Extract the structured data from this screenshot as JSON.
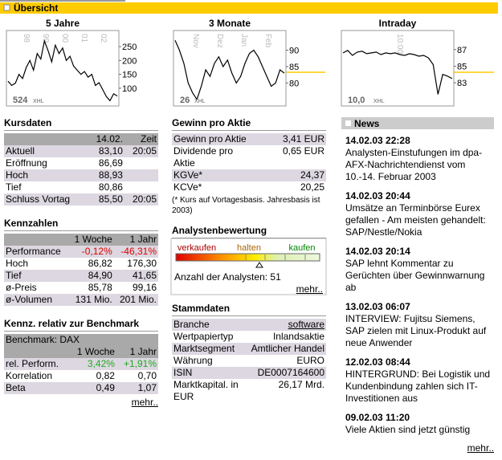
{
  "header": {
    "title": "Übersicht"
  },
  "charts": [
    {
      "type": "line",
      "title": "5 Jahre",
      "ylim": [
        36,
        308
      ],
      "yticks": [
        250,
        200,
        150,
        100
      ],
      "x_labels": [
        "98",
        "99",
        "00",
        "01",
        "02"
      ],
      "watermark": {
        "value": "524",
        "unit": "XHL"
      },
      "values": [
        125,
        110,
        118,
        150,
        135,
        175,
        200,
        165,
        225,
        205,
        270,
        235,
        195,
        255,
        225,
        245,
        200,
        215,
        180,
        165,
        150,
        160,
        140,
        150,
        110,
        120,
        95,
        70,
        55,
        80,
        72
      ]
    },
    {
      "type": "line",
      "title": "3 Monate",
      "ylim": [
        73,
        96
      ],
      "yticks": [
        90,
        85,
        80
      ],
      "x_labels": [
        "Nov",
        "Dez",
        "Jan",
        "Feb"
      ],
      "watermark": {
        "value": "26",
        "unit": "XHL"
      },
      "values": [
        93,
        90,
        86,
        80,
        77,
        75,
        79,
        84,
        82,
        86,
        88,
        85,
        87,
        83,
        80,
        82,
        86,
        89,
        90,
        88,
        85,
        82,
        79,
        80,
        84,
        83
      ]
    },
    {
      "type": "line",
      "title": "Intraday",
      "ylim": [
        80.2,
        89.3
      ],
      "yticks": [
        87,
        85,
        83
      ],
      "x_labels": [
        "10:00"
      ],
      "watermark": {
        "value": "10,0",
        "unit": "XHL"
      },
      "values": [
        86.6,
        86.9,
        86.3,
        86.7,
        86.8,
        86.5,
        86.6,
        86.7,
        86.4,
        86.6,
        86.5,
        86.6,
        86.4,
        86.3,
        86.5,
        86.4,
        86.2,
        86.3,
        86.0,
        85.2,
        81.6,
        84.0,
        83.8,
        83.5
      ]
    }
  ],
  "kursdaten": {
    "title": "Kursdaten",
    "header": [
      "14.02.",
      "Zeit"
    ],
    "rows": [
      [
        "Aktuell",
        "83,10",
        "20:05"
      ],
      [
        "Eröffnung",
        "86,69"
      ],
      [
        "Hoch",
        "88,93"
      ],
      [
        "Tief",
        "80,86"
      ],
      [
        "Schluss Vortag",
        "85,50",
        "20:05"
      ]
    ]
  },
  "kennzahlen": {
    "title": "Kennzahlen",
    "header": [
      "1 Woche",
      "1 Jahr"
    ],
    "highlight_row": 0,
    "highlight_color": "#dd0000",
    "rows": [
      [
        "Performance",
        "-0,12%",
        "-46,31%"
      ],
      [
        "Hoch",
        "86,82",
        "176,30"
      ],
      [
        "Tief",
        "84,90",
        "41,65"
      ],
      [
        "ø-Preis",
        "85,78",
        "99,16"
      ],
      [
        "ø-Volumen",
        "131 Mio.",
        "201 Mio."
      ]
    ]
  },
  "benchmark": {
    "title": "Kennz. relativ zur Benchmark",
    "subheader": "Benchmark: DAX",
    "header": [
      "1 Woche",
      "1 Jahr"
    ],
    "highlight_row": 0,
    "highlight_color": "#22aa22",
    "rows": [
      [
        "rel. Perform.",
        "3,42%",
        "+1,91%"
      ],
      [
        "Korrelation",
        "0,82",
        "0,70"
      ],
      [
        "Beta",
        "0,49",
        "1,07"
      ]
    ],
    "more": "mehr.."
  },
  "gewinn": {
    "title": "Gewinn pro Aktie",
    "rows": [
      [
        "Gewinn pro Aktie",
        "3,41 EUR"
      ],
      [
        "Dividende pro Aktie",
        "0,65 EUR"
      ],
      [
        "KGVe*",
        "24,37"
      ],
      [
        "KCVe*",
        "20,25"
      ]
    ],
    "footnote": "(* Kurs auf Vortagesbasis. Jahresbasis ist 2003)"
  },
  "analysten": {
    "title": "Analystenbewertung",
    "scale": [
      "verkaufen",
      "halten",
      "kaufen"
    ],
    "count": "Anzahl der Analysten: 51",
    "more": "mehr.."
  },
  "stammdaten": {
    "title": "Stammdaten",
    "link_row": 0,
    "rows": [
      [
        "Branche",
        "software"
      ],
      [
        "Wertpapiertyp",
        "Inlandsaktie"
      ],
      [
        "Marktsegment",
        "Amtlicher Handel"
      ],
      [
        "Währung",
        "EURO"
      ],
      [
        "ISIN",
        "DE0007164600"
      ],
      [
        "Marktkapital. in EUR",
        "26,17 Mrd."
      ]
    ]
  },
  "news": {
    "title": "News",
    "more": "mehr..",
    "items": [
      {
        "date": "14.02.03 22:28",
        "text": "Analysten-Einstufungen im dpa-AFX-Nachrichtendienst vom 10.-14. Februar 2003"
      },
      {
        "date": "14.02.03 20:44",
        "text": "Umsätze an Terminbörse Eurex gefallen - Am meisten gehandelt: SAP/Nestle/Nokia"
      },
      {
        "date": "14.02.03 20:14",
        "text": "SAP lehnt Kommentar zu Gerüchten über Gewinnwarnung ab"
      },
      {
        "date": "13.02.03 06:07",
        "text": "INTERVIEW: Fujitsu Siemens, SAP zielen mit Linux-Produkt auf neue Anwender"
      },
      {
        "date": "12.02.03 08:44",
        "text": "HINTERGRUND: Bei Logistik und Kundenbindung zahlen sich IT-Investitionen aus"
      },
      {
        "date": "09.02.03 11:20",
        "text": "Viele Aktien sind jetzt günstig"
      }
    ]
  }
}
